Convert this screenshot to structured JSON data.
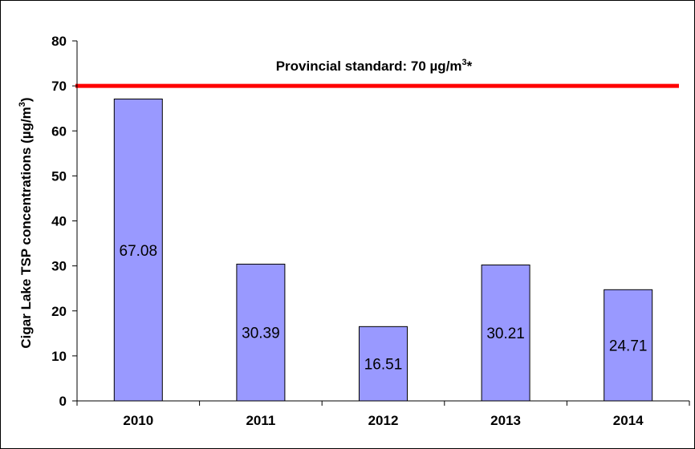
{
  "chart_data": {
    "type": "bar",
    "categories": [
      "2010",
      "2011",
      "2012",
      "2013",
      "2014"
    ],
    "values": [
      67.08,
      30.39,
      16.51,
      30.21,
      24.71
    ],
    "data_labels": [
      "67.08",
      "30.39",
      "16.51",
      "30.21",
      "24.71"
    ],
    "ylabel": "Cigar Lake TSP concentrations (µg/m³)",
    "ylabel_parts": {
      "main": "Cigar Lake TSP concentrations (µg/m",
      "sup": "3",
      "end": ")"
    },
    "ylim": [
      0,
      80
    ],
    "yticks": [
      0,
      10,
      20,
      30,
      40,
      50,
      60,
      70,
      80
    ],
    "grid": false,
    "reference_line": {
      "value": 70,
      "label": "Provincial standard: 70 µg/m³*",
      "label_parts": {
        "main": "Provincial standard: 70 µg/m",
        "sup": "3",
        "end": "*"
      },
      "color": "#ff0000"
    },
    "colors": {
      "bar_fill": "#9999ff",
      "bar_stroke": "#000000",
      "axis": "#000000"
    }
  }
}
